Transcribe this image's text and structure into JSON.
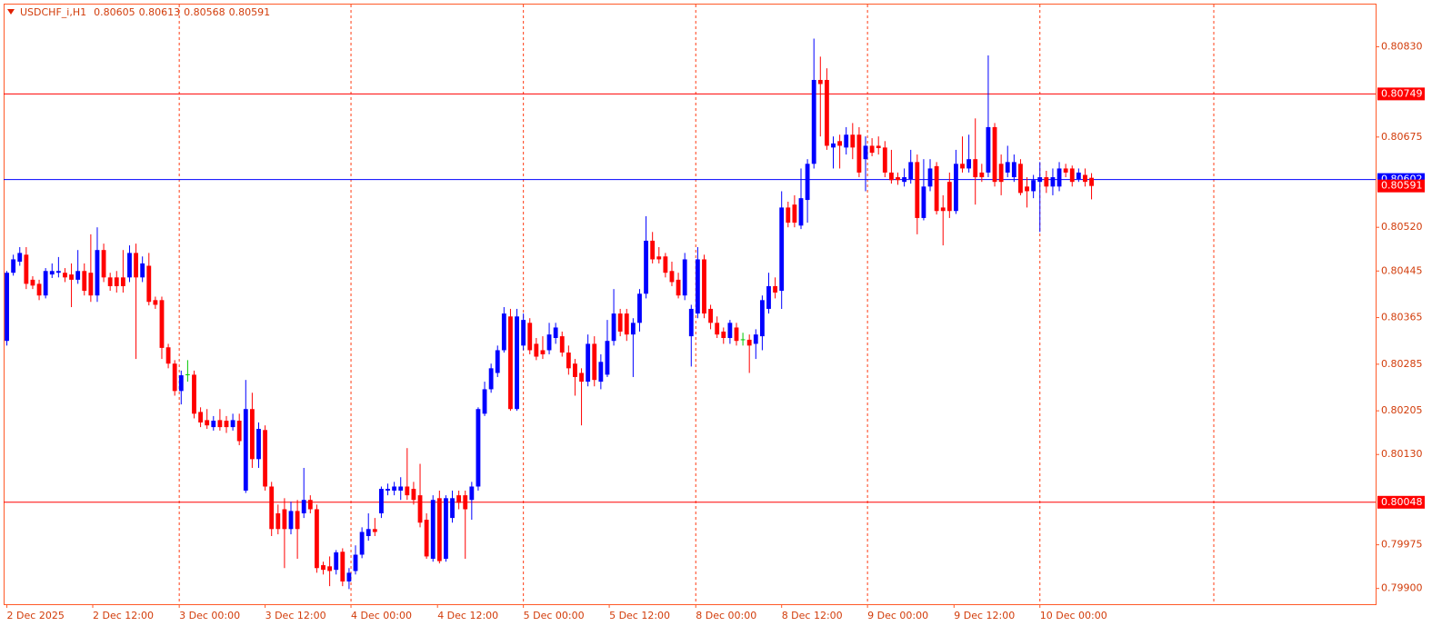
{
  "chart_data": {
    "type": "candlestick",
    "title": "USDCHF_i,H1",
    "up_color": "#0000ff",
    "down_color": "#ff0000",
    "doji_color": "#00c800",
    "open": [
      0.80325,
      0.80442,
      0.80461,
      0.80473,
      0.8043,
      0.80423,
      0.80403,
      0.80439,
      0.80442,
      0.80442,
      0.80439,
      0.8043,
      0.80445,
      0.80442,
      0.80403,
      0.80481,
      0.80434,
      0.80434,
      0.80434,
      0.80434,
      0.80476,
      0.80434,
      0.80454,
      0.80395,
      0.80395,
      0.80314,
      0.80286,
      0.80239,
      0.80267,
      0.80267,
      0.80203,
      0.80189,
      0.80177,
      0.80189,
      0.80188,
      0.80177,
      0.80188,
      0.80068,
      0.80208,
      0.80122,
      0.80172,
      0.80075,
      0.80029,
      0.80036,
      0.80002,
      0.80033,
      0.80029,
      0.80052,
      0.80036,
      0.7994,
      0.79938,
      0.79932,
      0.79963,
      0.79912,
      0.7993,
      0.79958,
      0.7999,
      0.80002,
      0.80029,
      0.80068,
      0.80068,
      0.80068,
      0.80075,
      0.80071,
      0.8006,
      0.80018,
      0.79951,
      0.80055,
      0.79951,
      0.80021,
      0.8006,
      0.8006,
      0.80052,
      0.80075,
      0.802,
      0.80242,
      0.8027,
      0.80309,
      0.80367,
      0.80208,
      0.80317,
      0.80356,
      0.8032,
      0.80309,
      0.80309,
      0.8033,
      0.80333,
      0.80305,
      0.80286,
      0.8027,
      0.80255,
      0.8032,
      0.80255,
      0.80267,
      0.80325,
      0.80372,
      0.80372,
      0.80336,
      0.80356,
      0.80406,
      0.80497,
      0.8047,
      0.8047,
      0.80445,
      0.8043,
      0.80403,
      0.80333,
      0.80372,
      0.80465,
      0.8038,
      0.80356,
      0.80341,
      0.8033,
      0.80348,
      0.80327,
      0.80327,
      0.8032,
      0.80333,
      0.8038,
      0.80419,
      0.80411,
      0.80554,
      0.80559,
      0.80523,
      0.80567,
      0.80629,
      0.80773,
      0.80773,
      0.80657,
      0.80668,
      0.80657,
      0.80679,
      0.80679,
      0.80637,
      0.8066,
      0.8066,
      0.80657,
      0.80614,
      0.80606,
      0.80598,
      0.80603,
      0.80632,
      0.80536,
      0.8059,
      0.80625,
      0.80554,
      0.80598,
      0.80548,
      0.80629,
      0.80621,
      0.80637,
      0.80614,
      0.80614,
      0.80692,
      0.80629,
      0.80614,
      0.80606,
      0.80629,
      0.8059,
      0.80582,
      0.80598,
      0.80606,
      0.8059,
      0.8059,
      0.80621,
      0.80621,
      0.80603,
      0.8061,
      0.80605
    ],
    "high": [
      0.80445,
      0.80473,
      0.80486,
      0.80486,
      0.80436,
      0.8043,
      0.8045,
      0.80458,
      0.80469,
      0.8045,
      0.80458,
      0.80481,
      0.80458,
      0.80508,
      0.8052,
      0.80492,
      0.80442,
      0.80445,
      0.80481,
      0.80489,
      0.80492,
      0.8047,
      0.80476,
      0.80401,
      0.80401,
      0.8032,
      0.80292,
      0.80274,
      0.80292,
      0.80274,
      0.80211,
      0.80208,
      0.80196,
      0.80208,
      0.80196,
      0.802,
      0.802,
      0.80258,
      0.80236,
      0.80185,
      0.8018,
      0.80083,
      0.80044,
      0.80055,
      0.80049,
      0.80052,
      0.80107,
      0.8006,
      0.80044,
      0.79946,
      0.79955,
      0.79966,
      0.79969,
      0.79935,
      0.79974,
      0.80005,
      0.80029,
      0.80021,
      0.80075,
      0.8008,
      0.80083,
      0.80091,
      0.80141,
      0.80083,
      0.80114,
      0.80029,
      0.8006,
      0.80068,
      0.8006,
      0.80068,
      0.80068,
      0.80068,
      0.80083,
      0.80211,
      0.80255,
      0.80286,
      0.80317,
      0.80383,
      0.8038,
      0.8038,
      0.80372,
      0.80364,
      0.8033,
      0.80333,
      0.80356,
      0.80356,
      0.80341,
      0.80317,
      0.80294,
      0.80278,
      0.80336,
      0.80333,
      0.80302,
      0.80361,
      0.80414,
      0.8038,
      0.8038,
      0.80364,
      0.80414,
      0.80539,
      0.80512,
      0.80486,
      0.80476,
      0.80461,
      0.80442,
      0.80476,
      0.80387,
      0.80486,
      0.80473,
      0.80387,
      0.80367,
      0.80348,
      0.80361,
      0.80356,
      0.80339,
      0.80336,
      0.80345,
      0.80403,
      0.80442,
      0.80434,
      0.80582,
      0.80564,
      0.80575,
      0.80621,
      0.80637,
      0.80844,
      0.80813,
      0.80793,
      0.80676,
      0.80679,
      0.80692,
      0.80699,
      0.80692,
      0.80676,
      0.80673,
      0.80676,
      0.80668,
      0.80653,
      0.80614,
      0.80621,
      0.80653,
      0.80645,
      0.80637,
      0.80637,
      0.80632,
      0.80575,
      0.80614,
      0.80653,
      0.80676,
      0.80679,
      0.80707,
      0.80629,
      0.80815,
      0.80699,
      0.80645,
      0.8066,
      0.80645,
      0.80637,
      0.80606,
      0.8061,
      0.80632,
      0.80617,
      0.80621,
      0.80632,
      0.80629,
      0.80626,
      0.80621,
      0.80621,
      0.80613
    ],
    "low": [
      0.80317,
      0.80437,
      0.80454,
      0.80414,
      0.80414,
      0.80395,
      0.80398,
      0.80433,
      0.80434,
      0.80426,
      0.80383,
      0.80423,
      0.80403,
      0.80392,
      0.80392,
      0.80426,
      0.80411,
      0.80408,
      0.80408,
      0.80426,
      0.80294,
      0.80426,
      0.80386,
      0.8038,
      0.80294,
      0.80278,
      0.80231,
      0.80216,
      0.80255,
      0.80192,
      0.80177,
      0.80174,
      0.80171,
      0.80171,
      0.80167,
      0.80171,
      0.80146,
      0.80064,
      0.80107,
      0.80107,
      0.80068,
      0.7999,
      0.79993,
      0.79935,
      0.79993,
      0.79951,
      0.80021,
      0.80029,
      0.79927,
      0.79924,
      0.79904,
      0.79924,
      0.79904,
      0.79899,
      0.79924,
      0.79952,
      0.79982,
      0.7999,
      0.80021,
      0.8006,
      0.8006,
      0.80052,
      0.80052,
      0.80044,
      0.80005,
      0.79951,
      0.79946,
      0.79943,
      0.79946,
      0.80013,
      0.80036,
      0.79951,
      0.80018,
      0.80068,
      0.80196,
      0.80236,
      0.80263,
      0.80305,
      0.80205,
      0.80205,
      0.80309,
      0.80302,
      0.80292,
      0.80294,
      0.80302,
      0.8032,
      0.80298,
      0.80267,
      0.80231,
      0.8018,
      0.80247,
      0.80247,
      0.80242,
      0.80263,
      0.80317,
      0.80333,
      0.80325,
      0.80263,
      0.80341,
      0.80398,
      0.80458,
      0.80458,
      0.80434,
      0.80419,
      0.80398,
      0.80395,
      0.80281,
      0.80364,
      0.80364,
      0.80345,
      0.8033,
      0.8032,
      0.8032,
      0.80317,
      0.80317,
      0.8027,
      0.80294,
      0.80309,
      0.80372,
      0.80398,
      0.8038,
      0.8052,
      0.8052,
      0.80517,
      0.80528,
      0.80621,
      0.80676,
      0.80653,
      0.80621,
      0.80621,
      0.80645,
      0.80637,
      0.80606,
      0.80582,
      0.80642,
      0.80645,
      0.80606,
      0.80595,
      0.80593,
      0.8059,
      0.80595,
      0.80508,
      0.80532,
      0.80582,
      0.80542,
      0.80489,
      0.80536,
      0.80543,
      0.80614,
      0.80614,
      0.80559,
      0.80598,
      0.80606,
      0.8059,
      0.80575,
      0.80606,
      0.80598,
      0.80575,
      0.80554,
      0.8057,
      0.80512,
      0.80579,
      0.80575,
      0.80582,
      0.80606,
      0.8059,
      0.80598,
      0.8059,
      0.80568
    ],
    "close": [
      0.80442,
      0.80465,
      0.80476,
      0.80423,
      0.8042,
      0.80403,
      0.80445,
      0.80445,
      0.80445,
      0.80434,
      0.8043,
      0.80445,
      0.80411,
      0.80403,
      0.80481,
      0.80434,
      0.80419,
      0.80419,
      0.80419,
      0.80476,
      0.80434,
      0.80458,
      0.80392,
      0.80387,
      0.80313,
      0.80286,
      0.80239,
      0.80266,
      0.80267,
      0.802,
      0.80185,
      0.8018,
      0.80188,
      0.80177,
      0.80177,
      0.80189,
      0.80153,
      0.80208,
      0.80122,
      0.80174,
      0.80075,
      0.80002,
      0.80002,
      0.80002,
      0.80033,
      0.80002,
      0.80052,
      0.80036,
      0.79935,
      0.79932,
      0.7993,
      0.79962,
      0.79912,
      0.79927,
      0.79958,
      0.79997,
      0.80002,
      0.79997,
      0.80071,
      0.80071,
      0.80075,
      0.80075,
      0.8006,
      0.80052,
      0.80013,
      0.79955,
      0.80052,
      0.79947,
      0.80055,
      0.80055,
      0.80047,
      0.80036,
      0.80075,
      0.80208,
      0.80242,
      0.80278,
      0.80309,
      0.80372,
      0.80208,
      0.80367,
      0.80361,
      0.80309,
      0.80298,
      0.80302,
      0.80336,
      0.80348,
      0.80305,
      0.80278,
      0.80263,
      0.80255,
      0.8032,
      0.80258,
      0.80289,
      0.80325,
      0.80372,
      0.80341,
      0.80336,
      0.80356,
      0.80406,
      0.80497,
      0.80465,
      0.80465,
      0.80442,
      0.80426,
      0.80403,
      0.80465,
      0.8038,
      0.80465,
      0.80372,
      0.80356,
      0.80336,
      0.8033,
      0.80356,
      0.80325,
      0.80327,
      0.80317,
      0.80336,
      0.80395,
      0.80419,
      0.80408,
      0.80554,
      0.80528,
      0.80528,
      0.8057,
      0.80629,
      0.80773,
      0.80766,
      0.8066,
      0.80664,
      0.8066,
      0.80679,
      0.80657,
      0.80614,
      0.8066,
      0.80648,
      0.80656,
      0.80614,
      0.80601,
      0.80601,
      0.80606,
      0.80632,
      0.80536,
      0.8059,
      0.80621,
      0.80548,
      0.80548,
      0.80548,
      0.80629,
      0.80621,
      0.80637,
      0.80606,
      0.80606,
      0.80692,
      0.80598,
      0.80598,
      0.80632,
      0.80632,
      0.80579,
      0.80582,
      0.80601,
      0.80606,
      0.8059,
      0.80606,
      0.80621,
      0.80614,
      0.80598,
      0.80614,
      0.80598,
      0.80591
    ],
    "ylim": [
      0.79873,
      0.80904
    ],
    "yticks": [
      {
        "value": 0.799,
        "label": "0.79900"
      },
      0.79975,
      {
        "value": 0.8013,
        "label": "0.80130"
      },
      0.80205,
      0.80285,
      0.80365,
      0.80445,
      {
        "value": 0.8052,
        "label": "0.80520"
      },
      0.80675,
      {
        "value": 0.8083,
        "label": "0.80830"
      }
    ],
    "xlim": [
      -0.5,
      212
    ],
    "xticks": [
      {
        "value": 0,
        "label": "2 Dec 2025"
      },
      {
        "value": 13.3,
        "label": "2 Dec 12:00"
      },
      {
        "value": 26.7,
        "label": "3 Dec 00:00"
      },
      {
        "value": 40,
        "label": "3 Dec 12:00"
      },
      {
        "value": 53.3,
        "label": "4 Dec 00:00"
      },
      {
        "value": 66.7,
        "label": "4 Dec 12:00"
      },
      {
        "value": 80,
        "label": "5 Dec 00:00"
      },
      {
        "value": 93.3,
        "label": "5 Dec 12:00"
      },
      {
        "value": 106.7,
        "label": "8 Dec 00:00"
      },
      {
        "value": 120,
        "label": "8 Dec 12:00"
      },
      {
        "value": 133.3,
        "label": "9 Dec 00:00"
      },
      {
        "value": 146.7,
        "label": "9 Dec 12:00"
      },
      {
        "value": 160,
        "label": "10 Dec 00:00"
      }
    ],
    "levels": [
      {
        "value": 0.80749,
        "color": "#ff0000"
      },
      {
        "value": 0.80602,
        "color": "#0000ff"
      },
      {
        "value": 0.80048,
        "color": "#ff0000"
      }
    ]
  }
}
